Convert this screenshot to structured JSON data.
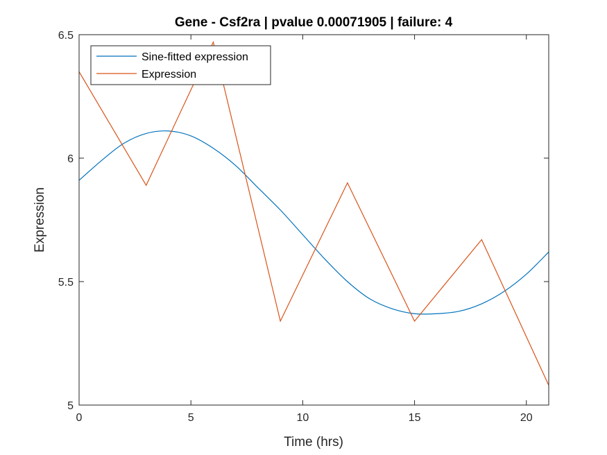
{
  "chart_data": {
    "type": "line",
    "title": "Gene - Csf2ra | pvalue 0.00071905 | failure: 4",
    "xlabel": "Time (hrs)",
    "ylabel": "Expression",
    "xlim": [
      0,
      21
    ],
    "ylim": [
      5,
      6.5
    ],
    "xticks": [
      0,
      5,
      10,
      15,
      20
    ],
    "yticks": [
      5,
      5.5,
      6,
      6.5
    ],
    "grid": false,
    "legend_position": "top-left",
    "series": [
      {
        "name": "Sine-fitted expression",
        "color": "#0072BD",
        "x": [
          0,
          1,
          2,
          3,
          4,
          5,
          6,
          7,
          8,
          9,
          10,
          11,
          12,
          13,
          14,
          15,
          16,
          17,
          18,
          19,
          20,
          21
        ],
        "y": [
          5.91,
          5.99,
          6.06,
          6.1,
          6.11,
          6.09,
          6.04,
          5.97,
          5.88,
          5.79,
          5.69,
          5.59,
          5.5,
          5.43,
          5.39,
          5.37,
          5.37,
          5.38,
          5.41,
          5.46,
          5.53,
          5.62
        ]
      },
      {
        "name": "Expression",
        "color": "#D95319",
        "x": [
          0,
          3,
          6,
          9,
          12,
          15,
          18,
          21
        ],
        "y": [
          6.35,
          5.89,
          6.47,
          5.34,
          5.9,
          5.34,
          5.67,
          5.08
        ]
      }
    ]
  }
}
